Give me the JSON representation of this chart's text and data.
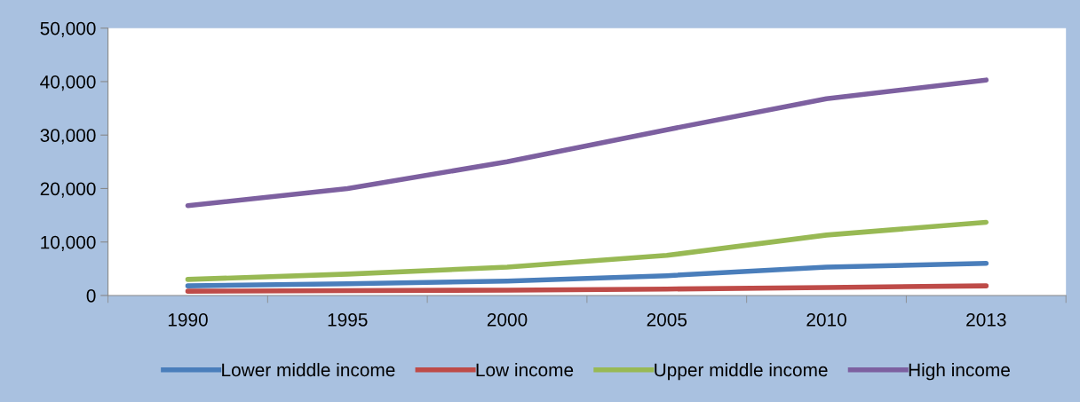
{
  "chart_data": {
    "type": "line",
    "categories": [
      "1990",
      "1995",
      "2000",
      "2005",
      "2010",
      "2013"
    ],
    "series": [
      {
        "name": "Lower middle income",
        "color": "#4a7ebb",
        "values": [
          1800,
          2200,
          2700,
          3700,
          5300,
          6000
        ]
      },
      {
        "name": "Low income",
        "color": "#be4b48",
        "values": [
          800,
          900,
          1000,
          1200,
          1500,
          1800
        ]
      },
      {
        "name": "Upper middle income",
        "color": "#98b954",
        "values": [
          3000,
          4000,
          5300,
          7500,
          11300,
          13700
        ]
      },
      {
        "name": "High income",
        "color": "#7d60a0",
        "values": [
          16800,
          20000,
          25000,
          31000,
          36800,
          40300
        ]
      }
    ],
    "ylim": [
      0,
      50000
    ],
    "yticks": [
      {
        "value": 0,
        "label": "0"
      },
      {
        "value": 10000,
        "label": "10,000"
      },
      {
        "value": 20000,
        "label": "20,000"
      },
      {
        "value": 30000,
        "label": "30,000"
      },
      {
        "value": 40000,
        "label": "40,000"
      },
      {
        "value": 50000,
        "label": "50,000"
      }
    ],
    "grid": false,
    "legend": "bottom",
    "marker": "none",
    "line_style": "solid"
  }
}
